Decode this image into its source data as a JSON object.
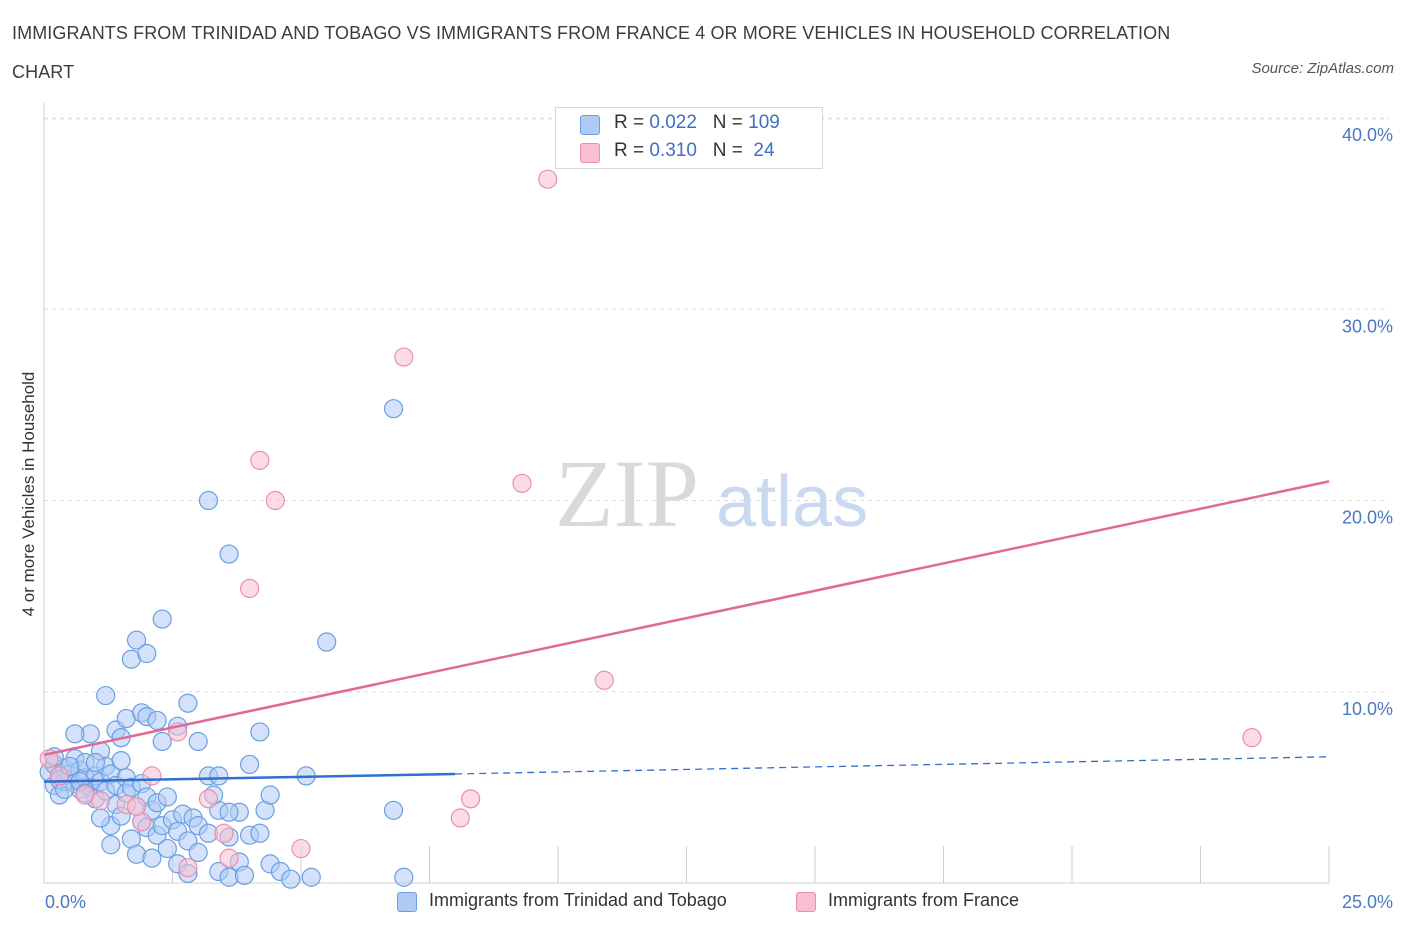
{
  "header": {
    "title": "IMMIGRANTS FROM TRINIDAD AND TOBAGO VS IMMIGRANTS FROM FRANCE 4 OR MORE VEHICLES IN HOUSEHOLD CORRELATION CHART",
    "source": "Source: ZipAtlas.com"
  },
  "watermark": {
    "zip": "ZIP",
    "atlas": "atlas"
  },
  "legend_top": {
    "rows": [
      {
        "r_label": "R = ",
        "r_value": "0.022",
        "n_label": "N = ",
        "n_value": "109",
        "color": "#aecbf5"
      },
      {
        "r_label": "R = ",
        "r_value": "0.310",
        "n_label": "N = ",
        "n_value": " 24",
        "color": "#f7bfd1"
      }
    ]
  },
  "chart_data": {
    "type": "scatter",
    "xlabel": "",
    "ylabel": "4 or more Vehicles in Household",
    "xlim": [
      0,
      25
    ],
    "ylim": [
      0,
      40
    ],
    "x_tick_labels": [
      "0.0%",
      "25.0%"
    ],
    "y_tick_labels": [
      "10.0%",
      "20.0%",
      "30.0%",
      "40.0%"
    ],
    "y_ticks": [
      10,
      20,
      30,
      40
    ],
    "grid": true,
    "legend_position": "top-center",
    "series": [
      {
        "name": "Immigrants from Trinidad and Tobago",
        "color": "#6a9fe0",
        "fill": "#aecbf5",
        "trend": {
          "x": [
            0,
            8
          ],
          "y": [
            5.3,
            5.7
          ],
          "dashed_extension": {
            "x": [
              8,
              25
            ],
            "y": [
              5.7,
              6.6
            ]
          },
          "color": "#2e6fd1"
        },
        "points": [
          [
            0.1,
            5.8
          ],
          [
            0.2,
            6.2
          ],
          [
            0.2,
            5.1
          ],
          [
            0.3,
            5.6
          ],
          [
            0.3,
            4.6
          ],
          [
            0.4,
            5.3
          ],
          [
            0.4,
            6.0
          ],
          [
            0.5,
            5.4
          ],
          [
            0.5,
            5.7
          ],
          [
            0.6,
            5.2
          ],
          [
            0.6,
            6.5
          ],
          [
            0.7,
            5.9
          ],
          [
            0.7,
            4.9
          ],
          [
            0.8,
            5.5
          ],
          [
            0.8,
            6.3
          ],
          [
            0.9,
            7.8
          ],
          [
            0.9,
            5.0
          ],
          [
            1.0,
            5.6
          ],
          [
            1.0,
            4.4
          ],
          [
            1.1,
            6.9
          ],
          [
            1.1,
            5.3
          ],
          [
            1.2,
            6.1
          ],
          [
            1.2,
            4.8
          ],
          [
            1.3,
            5.7
          ],
          [
            1.3,
            3.0
          ],
          [
            1.4,
            5.1
          ],
          [
            1.4,
            4.1
          ],
          [
            1.5,
            6.4
          ],
          [
            1.5,
            3.5
          ],
          [
            1.6,
            5.5
          ],
          [
            1.6,
            4.7
          ],
          [
            1.7,
            5.0
          ],
          [
            1.7,
            2.3
          ],
          [
            1.8,
            4.0
          ],
          [
            1.8,
            1.5
          ],
          [
            1.9,
            5.2
          ],
          [
            1.9,
            3.2
          ],
          [
            2.0,
            4.5
          ],
          [
            2.0,
            2.9
          ],
          [
            2.1,
            3.8
          ],
          [
            2.1,
            1.3
          ],
          [
            2.2,
            4.2
          ],
          [
            2.2,
            2.5
          ],
          [
            2.3,
            3.0
          ],
          [
            2.4,
            4.5
          ],
          [
            2.4,
            1.8
          ],
          [
            2.5,
            3.3
          ],
          [
            2.6,
            2.7
          ],
          [
            2.6,
            1.0
          ],
          [
            2.7,
            3.6
          ],
          [
            2.8,
            2.2
          ],
          [
            2.8,
            0.5
          ],
          [
            2.9,
            3.4
          ],
          [
            3.0,
            3.0
          ],
          [
            3.0,
            1.6
          ],
          [
            3.2,
            2.6
          ],
          [
            3.4,
            3.8
          ],
          [
            3.4,
            0.6
          ],
          [
            3.6,
            0.3
          ],
          [
            3.6,
            2.4
          ],
          [
            3.8,
            1.1
          ],
          [
            3.8,
            3.7
          ],
          [
            3.9,
            0.4
          ],
          [
            4.0,
            2.5
          ],
          [
            4.2,
            2.6
          ],
          [
            4.4,
            1.0
          ],
          [
            4.6,
            0.6
          ],
          [
            4.8,
            0.2
          ],
          [
            5.2,
            0.3
          ],
          [
            7.0,
            0.3
          ],
          [
            1.2,
            9.8
          ],
          [
            1.4,
            8.0
          ],
          [
            1.5,
            7.6
          ],
          [
            1.6,
            8.6
          ],
          [
            1.7,
            11.7
          ],
          [
            1.8,
            12.7
          ],
          [
            1.9,
            8.9
          ],
          [
            2.0,
            8.7
          ],
          [
            2.0,
            12.0
          ],
          [
            2.2,
            8.5
          ],
          [
            2.3,
            7.4
          ],
          [
            2.3,
            13.8
          ],
          [
            2.6,
            8.2
          ],
          [
            2.8,
            9.4
          ],
          [
            3.0,
            7.4
          ],
          [
            3.2,
            5.6
          ],
          [
            3.3,
            4.6
          ],
          [
            3.4,
            5.6
          ],
          [
            3.6,
            3.7
          ],
          [
            4.0,
            6.2
          ],
          [
            4.2,
            7.9
          ],
          [
            4.3,
            3.8
          ],
          [
            4.4,
            4.6
          ],
          [
            5.1,
            5.6
          ],
          [
            5.5,
            12.6
          ],
          [
            6.8,
            24.8
          ],
          [
            6.8,
            3.8
          ],
          [
            3.2,
            20.0
          ],
          [
            3.6,
            17.2
          ],
          [
            0.6,
            7.8
          ],
          [
            0.2,
            6.6
          ],
          [
            0.3,
            5.4
          ],
          [
            0.4,
            4.9
          ],
          [
            0.5,
            6.1
          ],
          [
            0.7,
            5.3
          ],
          [
            0.8,
            4.7
          ],
          [
            1.0,
            6.3
          ],
          [
            1.1,
            3.4
          ],
          [
            1.3,
            2.0
          ]
        ]
      },
      {
        "name": "Immigrants from France",
        "color": "#eb8fae",
        "fill": "#f7bfd1",
        "trend": {
          "x": [
            0,
            25
          ],
          "y": [
            6.7,
            21.0
          ],
          "color": "#e06a93"
        },
        "points": [
          [
            0.1,
            6.5
          ],
          [
            0.3,
            5.6
          ],
          [
            0.8,
            4.6
          ],
          [
            1.1,
            4.3
          ],
          [
            1.6,
            4.1
          ],
          [
            1.9,
            3.2
          ],
          [
            2.1,
            5.6
          ],
          [
            2.6,
            7.9
          ],
          [
            2.8,
            0.8
          ],
          [
            3.2,
            4.4
          ],
          [
            3.5,
            2.6
          ],
          [
            3.6,
            1.3
          ],
          [
            4.0,
            15.4
          ],
          [
            4.2,
            22.1
          ],
          [
            4.5,
            20.0
          ],
          [
            5.0,
            1.8
          ],
          [
            7.0,
            27.5
          ],
          [
            8.1,
            3.4
          ],
          [
            8.3,
            4.4
          ],
          [
            9.3,
            20.9
          ],
          [
            9.8,
            36.8
          ],
          [
            10.9,
            10.6
          ],
          [
            23.5,
            7.6
          ],
          [
            1.8,
            4.0
          ]
        ]
      }
    ]
  }
}
